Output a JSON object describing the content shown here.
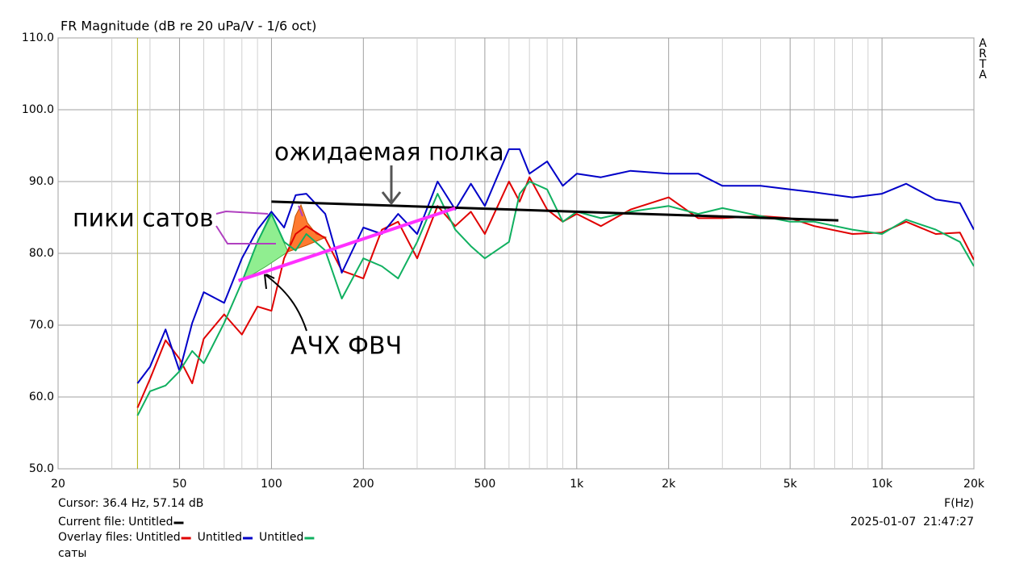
{
  "chart_data": {
    "type": "line",
    "title": "FR Magnitude (dB re 20 uPa/V - 1/6 oct)",
    "watermark": "ARTA",
    "xlabel": "F(Hz)",
    "log_x": true,
    "grid": true,
    "xlim": [
      20,
      20000
    ],
    "ylim": [
      50,
      110
    ],
    "xticks": [
      20,
      50,
      100,
      200,
      500,
      {
        "value": 1000,
        "label": "1k"
      },
      {
        "value": 2000,
        "label": "2k"
      },
      {
        "value": 5000,
        "label": "5k"
      },
      {
        "value": 10000,
        "label": "10k"
      },
      {
        "value": 20000,
        "label": "20k"
      }
    ],
    "minor_xticks": [
      30,
      40,
      60,
      70,
      80,
      90,
      300,
      400,
      600,
      700,
      800,
      900,
      3000,
      4000,
      6000,
      7000,
      8000,
      9000
    ],
    "yticks": [
      {
        "value": 50,
        "label": "50.0"
      },
      {
        "value": 60,
        "label": "60.0"
      },
      {
        "value": 70,
        "label": "70.0"
      },
      {
        "value": 80,
        "label": "80.0"
      },
      {
        "value": 90,
        "label": "90.0"
      },
      {
        "value": 100,
        "label": "100.0"
      },
      {
        "value": 110,
        "label": "110.0"
      }
    ],
    "x": [
      36.4,
      40,
      45,
      50,
      55,
      60,
      70,
      80,
      90,
      100,
      110,
      120,
      130,
      150,
      170,
      200,
      230,
      260,
      300,
      350,
      400,
      450,
      500,
      600,
      650,
      700,
      800,
      900,
      1000,
      1200,
      1500,
      2000,
      2500,
      3000,
      4000,
      5000,
      6000,
      8000,
      10000,
      12000,
      15000,
      18000,
      20000
    ],
    "series": [
      {
        "name": "Untitled",
        "color": "#e00000",
        "values": [
          58.5,
          62.5,
          67.9,
          65.3,
          61.9,
          68.1,
          71.5,
          68.7,
          72.6,
          72.0,
          79.3,
          82.7,
          83.8,
          82.1,
          77.6,
          76.5,
          83.3,
          84.4,
          79.3,
          86.6,
          83.8,
          85.8,
          82.7,
          90.0,
          87.2,
          90.6,
          86.1,
          84.4,
          85.5,
          83.8,
          86.1,
          87.8,
          84.9,
          84.9,
          85.2,
          84.9,
          83.8,
          82.7,
          82.9,
          84.4,
          82.7,
          82.9,
          79.1
        ]
      },
      {
        "name": "Untitled",
        "color": "#0000c8",
        "values": [
          61.9,
          64.2,
          69.4,
          63.6,
          70.3,
          74.6,
          73.1,
          79.3,
          83.3,
          85.8,
          83.6,
          88.1,
          88.3,
          85.5,
          77.3,
          83.6,
          82.7,
          85.5,
          82.7,
          90.0,
          86.1,
          89.7,
          86.6,
          94.5,
          94.5,
          91.1,
          92.8,
          89.4,
          91.1,
          90.6,
          91.5,
          91.1,
          91.1,
          89.4,
          89.4,
          88.9,
          88.5,
          87.8,
          88.3,
          89.7,
          87.5,
          87.0,
          83.3
        ]
      },
      {
        "name": "Untitled",
        "color": "#10b060",
        "values": [
          57.4,
          60.8,
          61.6,
          63.6,
          66.4,
          64.7,
          70.3,
          76.0,
          81.6,
          85.5,
          81.6,
          80.4,
          82.7,
          80.4,
          73.7,
          79.3,
          78.2,
          76.5,
          81.6,
          88.3,
          83.3,
          81.0,
          79.3,
          81.6,
          88.3,
          90.0,
          88.9,
          84.4,
          85.8,
          84.9,
          85.8,
          86.6,
          85.5,
          86.3,
          85.2,
          84.4,
          84.4,
          83.3,
          82.7,
          84.7,
          83.3,
          81.6,
          78.2
        ]
      }
    ],
    "current": {
      "name": "Untitled",
      "color": "#000000",
      "x": [
        100,
        7200
      ],
      "values": [
        87.2,
        84.6
      ]
    },
    "hpf": {
      "name": "АЧХ ФВЧ",
      "color": "#ff30ff",
      "x": [
        78,
        400
      ],
      "values": [
        76.2,
        86.3
      ]
    },
    "cursor": {
      "label": "Cursor: 36.4 Hz, 57.14 dB",
      "x": 36.4,
      "color": "#b0b000"
    },
    "current_file_label": "Current file:",
    "overlay_files_label": "Overlay files:",
    "file_note": "саты",
    "timestamp": "2025-01-07  21:47:27",
    "annotations": [
      "ожидаемая полка",
      "пики сатов"
    ]
  }
}
